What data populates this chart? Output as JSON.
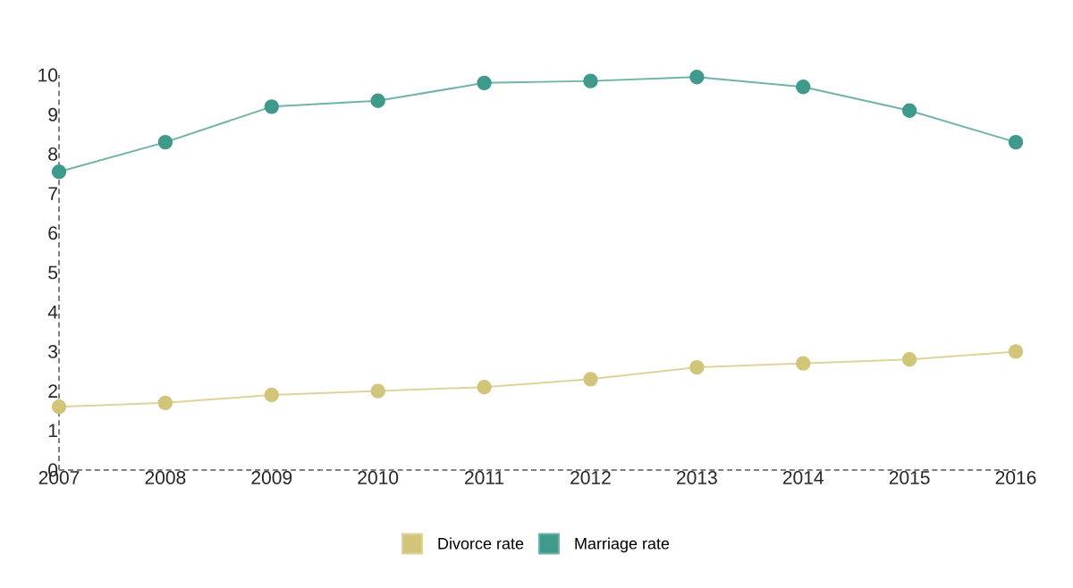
{
  "chart_data": {
    "type": "line",
    "categories": [
      "2007",
      "2008",
      "2009",
      "2010",
      "2011",
      "2012",
      "2013",
      "2014",
      "2015",
      "2016"
    ],
    "series": [
      {
        "name": "Divorce rate",
        "color": "#d1c57a",
        "values": [
          1.6,
          1.7,
          1.9,
          2.0,
          2.1,
          2.3,
          2.6,
          2.7,
          2.8,
          3.0
        ]
      },
      {
        "name": "Marriage rate",
        "color": "#3f9a8c",
        "values": [
          7.55,
          8.3,
          9.2,
          9.35,
          9.8,
          9.85,
          9.95,
          9.7,
          9.1,
          8.3
        ]
      }
    ],
    "ylim": [
      0,
      10
    ],
    "yticks": [
      0,
      1,
      2,
      3,
      4,
      5,
      6,
      7,
      8,
      9,
      10
    ],
    "legend": "bottom",
    "marker": "circle",
    "grid": false
  }
}
